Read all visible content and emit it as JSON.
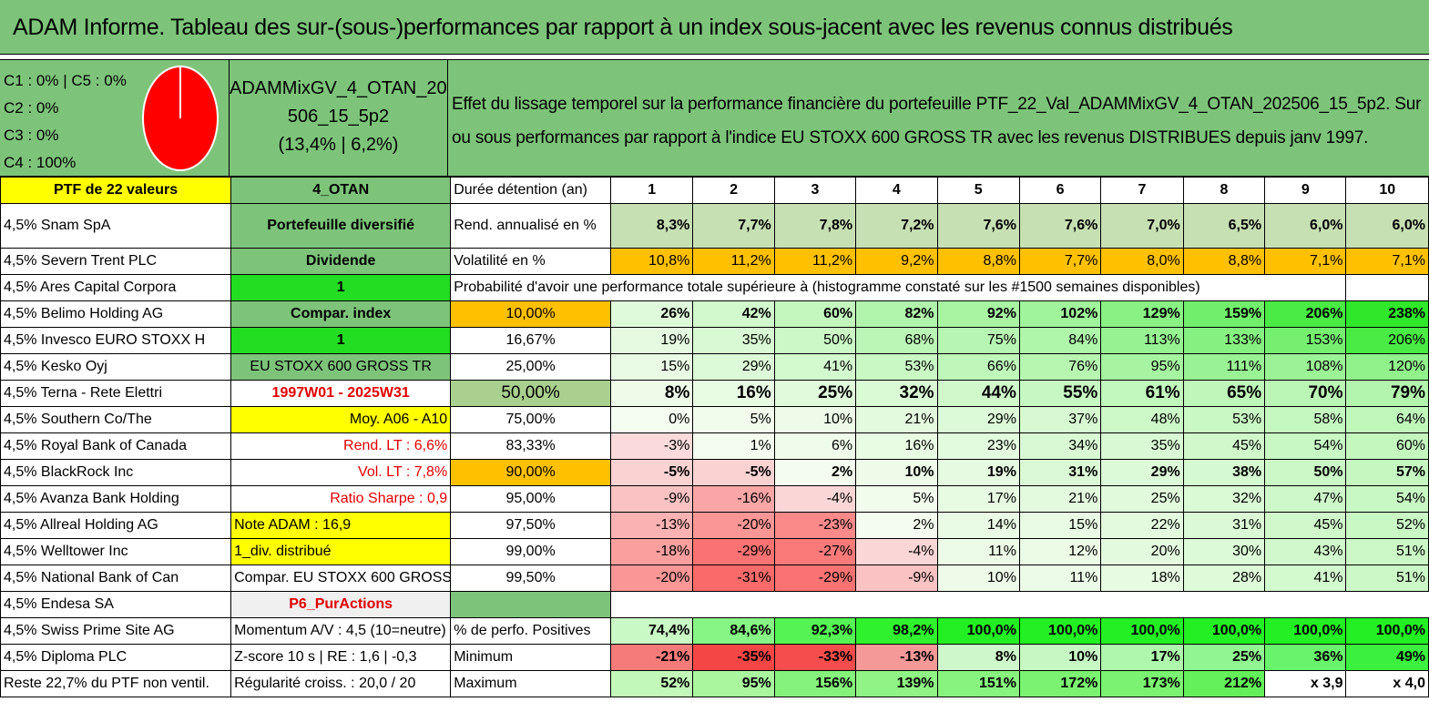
{
  "title": "ADAM Informe. Tableau des sur-(sous-)performances par rapport à un index sous-jacent avec les revenus connus distribués",
  "legend": [
    "C1 : 0% | C5 : 0%",
    "C2 : 0%",
    "C3 : 0%",
    "C4 : 100%"
  ],
  "pie": {
    "color": "#ff0000",
    "c4_fraction": 1.0
  },
  "portfolio": {
    "name_line1": "ADAMMixGV_4_OTAN_202",
    "name_line2": "506_15_5p2",
    "name_line3": "(13,4% | 6,2%)"
  },
  "description": {
    "line1": "Effet du lissage temporel sur la performance financière du portefeuille PTF_22_Val_ADAMMixGV_4_OTAN_202506_15_5p2. Sur",
    "line2": "ou sous performances par rapport à l'indice EU STOXX 600 GROSS TR avec les revenus DISTRIBUES depuis janv 1997."
  },
  "left_col": [
    "PTF de 22 valeurs",
    "4,5% Snam SpA",
    "4,5% Severn Trent PLC",
    "4,5% Ares Capital Corpora",
    "4,5% Belimo Holding AG",
    "4,5% Invesco EURO STOXX H",
    "4,5% Kesko Oyj",
    "4,5% Terna - Rete Elettri",
    "4,5% Southern Co/The",
    "4,5% Royal Bank of Canada",
    "4,5% BlackRock Inc",
    "4,5% Avanza Bank Holding",
    "4,5% Allreal Holding AG",
    "4,5% Welltower Inc",
    "4,5% National Bank of Can",
    "4,5% Endesa SA",
    "4,5% Swiss Prime Site AG",
    "4,5% Diploma PLC",
    "Reste 22,7% du PTF non ventil."
  ],
  "mid_col": [
    "4_OTAN",
    "Portefeuille diversifié",
    "Dividende",
    "1",
    "Compar. index",
    "1",
    "EU STOXX 600 GROSS TR",
    "1997W01 - 2025W31",
    "Moy. A06 - A10",
    "Rend. LT : 6,6%",
    "Vol. LT : 7,8%",
    "Ratio Sharpe : 0,9",
    "Note ADAM : 16,9",
    "1_div. distribué",
    "Compar. EU STOXX 600 GROSS TR",
    "P6_PurActions",
    "Momentum A/V : 4,5 (10=neutre)",
    "Z-score 10 s | RE : 1,6 | -0,3",
    "Régularité croiss. : 20,0 / 20"
  ],
  "header_row": {
    "label": "Durée détention (an)",
    "years": [
      "1",
      "2",
      "3",
      "4",
      "5",
      "6",
      "7",
      "8",
      "9",
      "10"
    ]
  },
  "rend_row": {
    "label": "Rend. annualisé en %",
    "values": [
      "8,3%",
      "7,7%",
      "7,8%",
      "7,2%",
      "7,6%",
      "7,6%",
      "7,0%",
      "6,5%",
      "6,0%",
      "6,0%"
    ]
  },
  "vol_row": {
    "label": "Volatilité en %",
    "values": [
      "10,8%",
      "11,2%",
      "11,2%",
      "9,2%",
      "8,8%",
      "7,7%",
      "8,0%",
      "8,8%",
      "7,1%",
      "7,1%"
    ]
  },
  "prob_title": "Probabilité d'avoir une performance totale supérieure à (histogramme constaté sur les #1500 semaines disponibles)",
  "prob_rows": [
    {
      "label": "10,00%",
      "values": [
        "26%",
        "42%",
        "60%",
        "82%",
        "92%",
        "102%",
        "129%",
        "159%",
        "206%",
        "238%"
      ]
    },
    {
      "label": "16,67%",
      "values": [
        "19%",
        "35%",
        "50%",
        "68%",
        "75%",
        "84%",
        "113%",
        "133%",
        "153%",
        "206%"
      ]
    },
    {
      "label": "25,00%",
      "values": [
        "15%",
        "29%",
        "41%",
        "53%",
        "66%",
        "76%",
        "95%",
        "111%",
        "108%",
        "120%"
      ]
    },
    {
      "label": "50,00%",
      "values": [
        "8%",
        "16%",
        "25%",
        "32%",
        "44%",
        "55%",
        "61%",
        "65%",
        "70%",
        "79%"
      ]
    },
    {
      "label": "75,00%",
      "values": [
        "0%",
        "5%",
        "10%",
        "21%",
        "29%",
        "37%",
        "48%",
        "53%",
        "58%",
        "64%"
      ]
    },
    {
      "label": "83,33%",
      "values": [
        "-3%",
        "1%",
        "6%",
        "16%",
        "23%",
        "34%",
        "35%",
        "45%",
        "54%",
        "60%"
      ]
    },
    {
      "label": "90,00%",
      "values": [
        "-5%",
        "-5%",
        "2%",
        "10%",
        "19%",
        "31%",
        "29%",
        "38%",
        "50%",
        "57%"
      ]
    },
    {
      "label": "95,00%",
      "values": [
        "-9%",
        "-16%",
        "-4%",
        "5%",
        "17%",
        "21%",
        "25%",
        "32%",
        "47%",
        "54%"
      ]
    },
    {
      "label": "97,50%",
      "values": [
        "-13%",
        "-20%",
        "-23%",
        "2%",
        "14%",
        "15%",
        "22%",
        "31%",
        "45%",
        "52%"
      ]
    },
    {
      "label": "99,00%",
      "values": [
        "-18%",
        "-29%",
        "-27%",
        "-4%",
        "11%",
        "12%",
        "20%",
        "30%",
        "43%",
        "51%"
      ]
    },
    {
      "label": "99,50%",
      "values": [
        "-20%",
        "-31%",
        "-29%",
        "-9%",
        "10%",
        "11%",
        "18%",
        "28%",
        "41%",
        "51%"
      ]
    }
  ],
  "pos_row": {
    "label": "% de perfo. Positives",
    "values": [
      "74,4%",
      "84,6%",
      "92,3%",
      "98,2%",
      "100,0%",
      "100,0%",
      "100,0%",
      "100,0%",
      "100,0%",
      "100,0%"
    ]
  },
  "min_row": {
    "label": "Minimum",
    "values": [
      "-21%",
      "-35%",
      "-33%",
      "-13%",
      "8%",
      "10%",
      "17%",
      "25%",
      "36%",
      "49%"
    ]
  },
  "max_row": {
    "label": "Maximum",
    "values": [
      "52%",
      "95%",
      "156%",
      "139%",
      "151%",
      "172%",
      "173%",
      "212%",
      "x 3,9",
      "x 4,0"
    ]
  }
}
